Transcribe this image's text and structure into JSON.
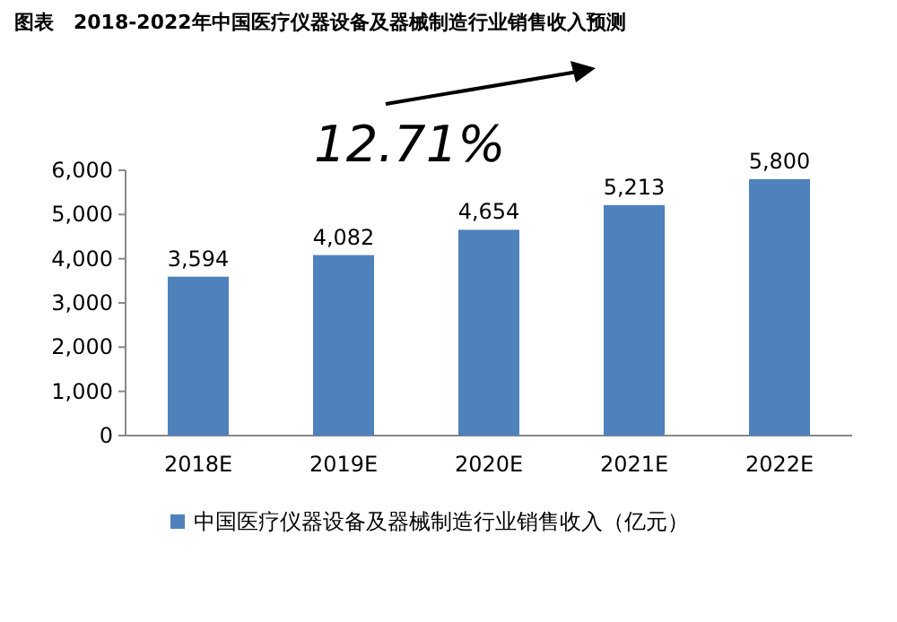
{
  "chart_data": {
    "type": "bar",
    "title": "图表　2018-2022年中国医疗仪器设备及器械制造行业销售收入预测",
    "categories": [
      "2018E",
      "2019E",
      "2020E",
      "2021E",
      "2022E"
    ],
    "series": [
      {
        "name": "中国医疗仪器设备及器械制造行业销售收入（亿元）",
        "color": "#4f81bd",
        "values": [
          3594,
          4082,
          4654,
          5213,
          5800
        ],
        "value_labels": [
          "3,594",
          "4,082",
          "4,654",
          "5,213",
          "5,800"
        ]
      }
    ],
    "ylim": [
      0,
      6000
    ],
    "yticks": [
      {
        "value": 0,
        "label": "0"
      },
      {
        "value": 1000,
        "label": "1,000"
      },
      {
        "value": 2000,
        "label": "2,000"
      },
      {
        "value": 3000,
        "label": "3,000"
      },
      {
        "value": 4000,
        "label": "4,000"
      },
      {
        "value": 5000,
        "label": "5,000"
      },
      {
        "value": 6000,
        "label": "6,000"
      }
    ],
    "legend": "bottom",
    "annotations": [
      "12.71%"
    ]
  }
}
